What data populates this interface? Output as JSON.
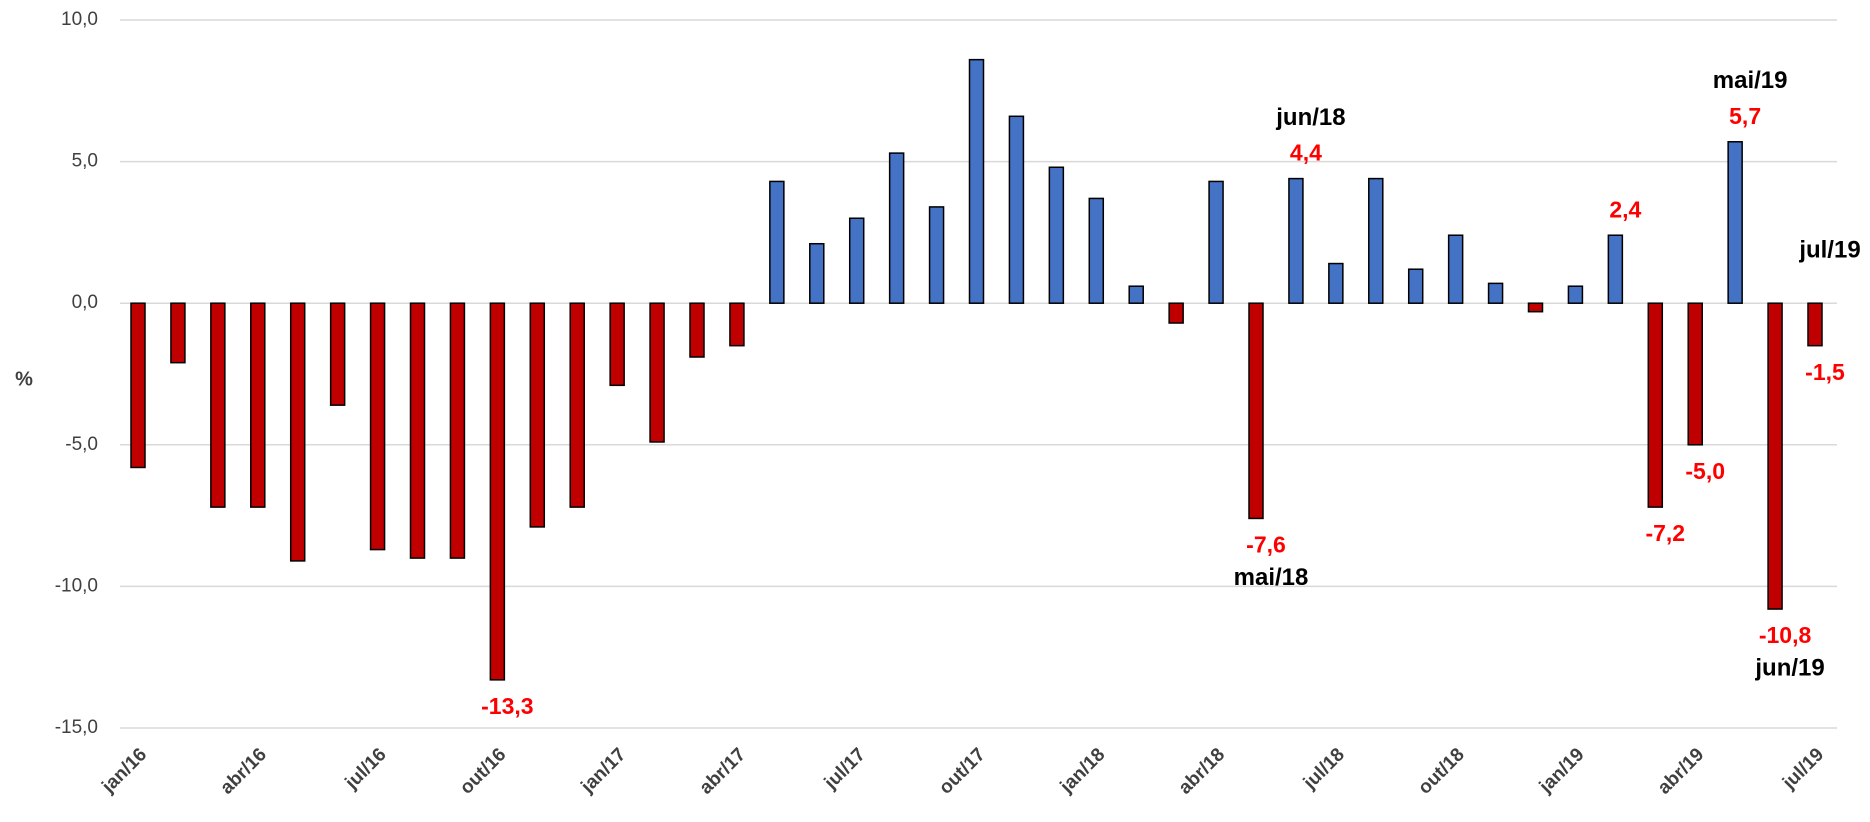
{
  "chart_data": {
    "type": "bar",
    "y_axis_label": "%",
    "categories": [
      "jan/16",
      null,
      null,
      "abr/16",
      null,
      null,
      "jul/16",
      null,
      null,
      "out/16",
      null,
      null,
      "jan/17",
      null,
      null,
      "abr/17",
      null,
      null,
      "jul/17",
      null,
      null,
      "out/17",
      null,
      null,
      "jan/18",
      null,
      null,
      "abr/18",
      null,
      null,
      "jul/18",
      null,
      null,
      "out/18",
      null,
      null,
      "jan/19",
      null,
      null,
      "abr/19",
      null,
      null,
      "jul/19"
    ],
    "values": [
      -5.8,
      -2.1,
      -7.2,
      -7.2,
      -9.1,
      -3.6,
      -8.7,
      -9.0,
      -9.0,
      -13.3,
      -7.9,
      -7.2,
      -2.9,
      -4.9,
      -1.9,
      -1.5,
      4.3,
      2.1,
      3.0,
      5.3,
      3.4,
      8.6,
      6.6,
      4.8,
      3.7,
      0.6,
      -0.7,
      4.3,
      -7.6,
      4.4,
      1.4,
      4.4,
      1.2,
      2.4,
      0.7,
      -0.3,
      0.6,
      2.4,
      -7.2,
      -5.0,
      5.7,
      -10.8,
      -1.5
    ],
    "value_labels": [
      null,
      null,
      null,
      null,
      null,
      null,
      null,
      null,
      null,
      "-13,3",
      null,
      null,
      null,
      null,
      null,
      null,
      null,
      null,
      null,
      null,
      null,
      null,
      null,
      null,
      null,
      null,
      null,
      null,
      "-7,6",
      "4,4",
      null,
      null,
      null,
      null,
      null,
      null,
      null,
      "2,4",
      "-7,2",
      "-5,0",
      "5,7",
      "-10,8",
      "-1,5"
    ],
    "annotations": [
      null,
      null,
      null,
      null,
      null,
      null,
      null,
      null,
      null,
      null,
      null,
      null,
      null,
      null,
      null,
      null,
      null,
      null,
      null,
      null,
      null,
      null,
      null,
      null,
      null,
      null,
      null,
      null,
      "mai/18",
      "jun/18",
      null,
      null,
      null,
      null,
      null,
      null,
      null,
      null,
      null,
      null,
      "mai/19",
      "jun/19",
      "jul/19"
    ],
    "color_positive": "#4472c4",
    "color_negative": "#c00000",
    "ylim": [
      -15,
      10
    ],
    "yticks": [
      {
        "value": -15,
        "label": "-15,0"
      },
      {
        "value": -10,
        "label": "-10,0"
      },
      {
        "value": -5,
        "label": "-5,0"
      },
      {
        "value": 0,
        "label": "0,0"
      },
      {
        "value": 5,
        "label": "5,0"
      },
      {
        "value": 10,
        "label": "10,0"
      }
    ],
    "grid": true
  }
}
